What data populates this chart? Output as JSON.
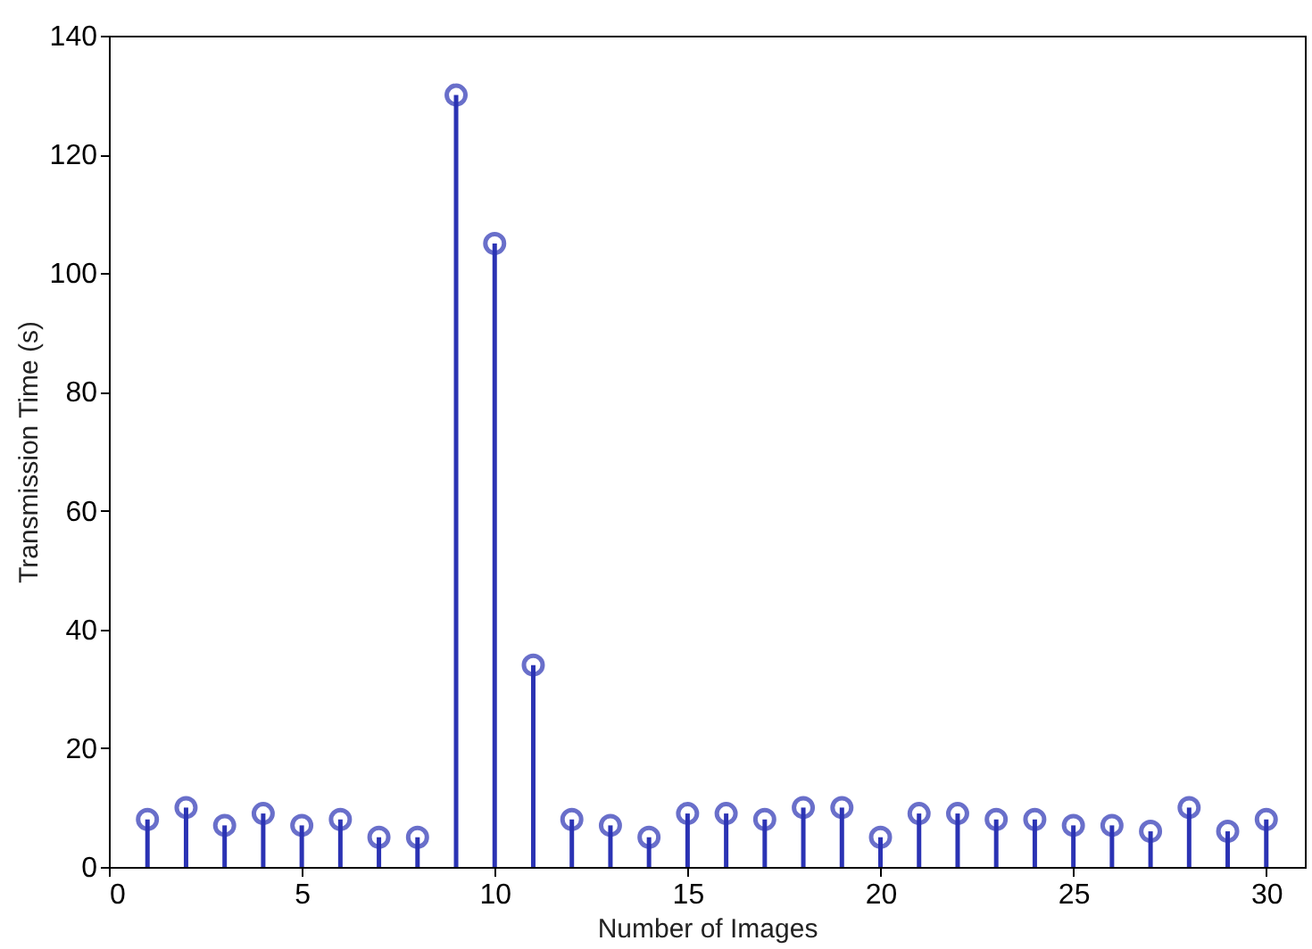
{
  "chart_data": {
    "type": "lollipop",
    "xlabel": "Number of Images",
    "ylabel": "Transmission Time (s)",
    "x": [
      1,
      2,
      3,
      4,
      5,
      6,
      7,
      8,
      9,
      10,
      11,
      12,
      13,
      14,
      15,
      16,
      17,
      18,
      19,
      20,
      21,
      22,
      23,
      24,
      25,
      26,
      27,
      28,
      29,
      30
    ],
    "values": [
      8,
      10,
      7,
      9,
      7,
      8,
      5,
      5,
      130,
      105,
      34,
      8,
      7,
      5,
      9,
      9,
      8,
      10,
      10,
      5,
      9,
      9,
      8,
      8,
      7,
      7,
      6,
      10,
      6,
      8
    ],
    "color": "#2b33b4",
    "marker": "circle",
    "xlim": [
      0,
      31
    ],
    "xticks": [
      0,
      5,
      10,
      15,
      20,
      25,
      30
    ],
    "ylim": [
      0,
      140
    ],
    "yticks": [
      0,
      20,
      40,
      60,
      80,
      100,
      120,
      140
    ]
  }
}
